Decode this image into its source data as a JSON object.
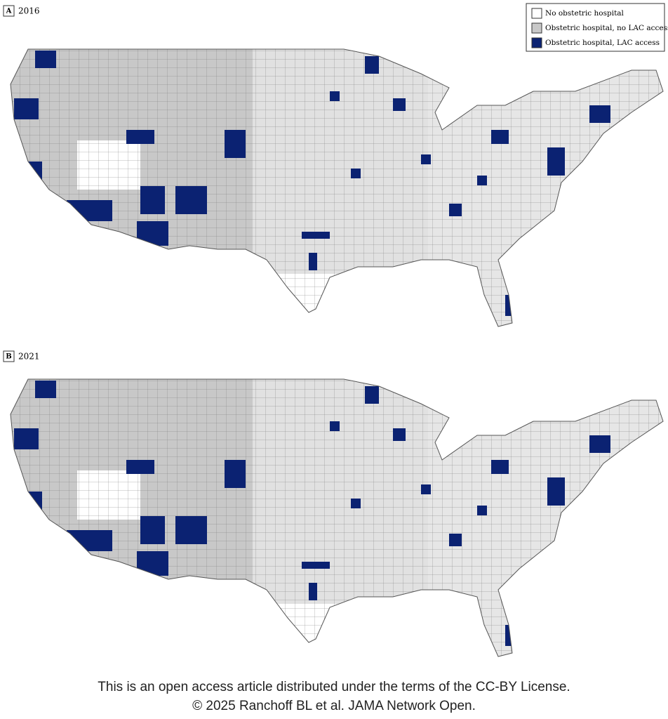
{
  "panels": [
    {
      "label": "A",
      "year": "2016"
    },
    {
      "label": "B",
      "year": "2021"
    }
  ],
  "legend": [
    "No obstetric hospital",
    "Obstetric hospital, no LAC access",
    "Obstetric hospital, LAC access"
  ],
  "footer": {
    "line1": "This is an open access article distributed under the terms of the CC-BY License.",
    "line2": "© 2025 Ranchoff BL et al. JAMA Network Open."
  }
}
